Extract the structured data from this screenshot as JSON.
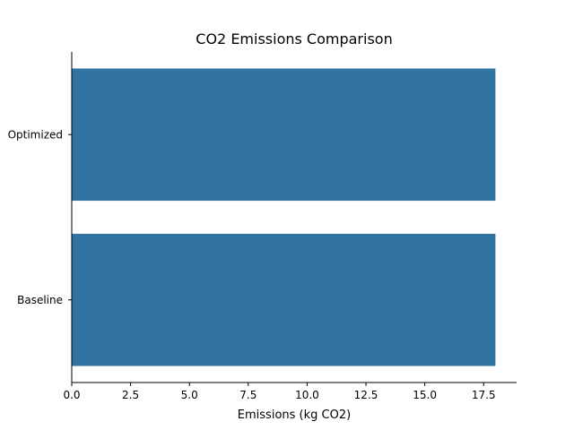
{
  "chart_data": {
    "type": "bar",
    "orientation": "horizontal",
    "title": "CO2 Emissions Comparison",
    "xlabel": "Emissions (kg CO2)",
    "ylabel": "",
    "categories": [
      "Baseline",
      "Optimized"
    ],
    "values": [
      18.0,
      18.0
    ],
    "xlim": [
      0,
      18.9
    ],
    "xticks": [
      "0.0",
      "2.5",
      "5.0",
      "7.5",
      "10.0",
      "12.5",
      "15.0",
      "17.5"
    ],
    "bar_color": "#3274a1",
    "grid": false,
    "legend": "none"
  }
}
